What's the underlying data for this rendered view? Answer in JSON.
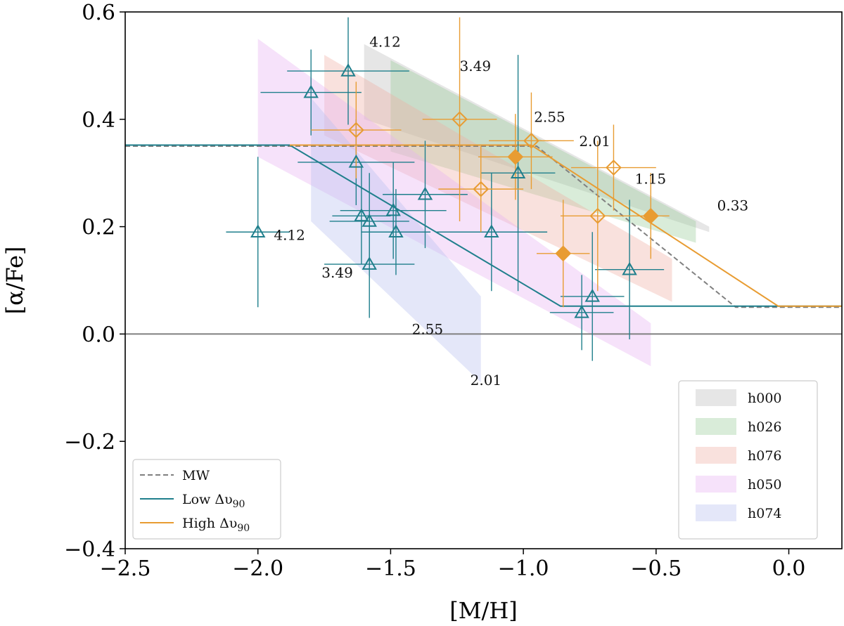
{
  "chart_data": {
    "type": "scatter",
    "xlabel": "[M/H]",
    "ylabel": "[α/Fe]",
    "xlim": [
      -2.5,
      0.2
    ],
    "ylim": [
      -0.4,
      0.6
    ],
    "xticks": [
      -2.5,
      -2.0,
      -1.5,
      -1.0,
      -0.5,
      0.0
    ],
    "xtick_labels": [
      "−2.5",
      "−2.0",
      "−1.5",
      "−1.0",
      "−0.5",
      "0.0"
    ],
    "yticks": [
      -0.4,
      -0.2,
      0.0,
      0.2,
      0.4,
      0.6
    ],
    "ytick_labels": [
      "−0.4",
      "−0.2",
      "0.0",
      "0.2",
      "0.4",
      "0.6"
    ],
    "reference_line": {
      "y": 0.0,
      "color": "#808080"
    },
    "colors": {
      "low": "#1f7f8c",
      "high": "#e89c32",
      "mw": "#808080"
    },
    "bands": [
      {
        "name": "h000",
        "color": "#bdbdbd",
        "upper": [
          [
            -1.6,
            0.54
          ],
          [
            -0.3,
            0.2
          ]
        ],
        "lower": [
          [
            -1.6,
            0.4
          ],
          [
            -0.3,
            0.19
          ]
        ]
      },
      {
        "name": "h026",
        "color": "#9ccc9c",
        "upper": [
          [
            -1.5,
            0.51
          ],
          [
            -0.35,
            0.21
          ]
        ],
        "lower": [
          [
            -1.5,
            0.34
          ],
          [
            -0.35,
            0.17
          ]
        ]
      },
      {
        "name": "h076",
        "color": "#f0b0a6",
        "upper": [
          [
            -1.75,
            0.52
          ],
          [
            -0.44,
            0.14
          ]
        ],
        "lower": [
          [
            -1.75,
            0.37
          ],
          [
            -0.44,
            0.06
          ]
        ]
      },
      {
        "name": "h050",
        "color": "#e7b3f2",
        "upper": [
          [
            -2.0,
            0.55
          ],
          [
            -0.52,
            0.02
          ]
        ],
        "lower": [
          [
            -2.0,
            0.33
          ],
          [
            -0.52,
            -0.06
          ]
        ]
      },
      {
        "name": "h074",
        "color": "#b8bfee",
        "upper": [
          [
            -1.8,
            0.44
          ],
          [
            -1.16,
            0.07
          ]
        ],
        "lower": [
          [
            -1.8,
            0.21
          ],
          [
            -1.16,
            -0.09
          ]
        ]
      }
    ],
    "band_labels": [
      {
        "text": "4.12",
        "x": -1.58,
        "y": 0.535
      },
      {
        "text": "3.49",
        "x": -1.24,
        "y": 0.49
      },
      {
        "text": "2.55",
        "x": -0.96,
        "y": 0.395
      },
      {
        "text": "2.01",
        "x": -0.79,
        "y": 0.35
      },
      {
        "text": "1.15",
        "x": -0.58,
        "y": 0.28
      },
      {
        "text": "0.33",
        "x": -0.27,
        "y": 0.23
      },
      {
        "text": "4.12",
        "x": -1.94,
        "y": 0.175
      },
      {
        "text": "3.49",
        "x": -1.76,
        "y": 0.105
      },
      {
        "text": "2.55",
        "x": -1.42,
        "y": 0.0
      },
      {
        "text": "2.01",
        "x": -1.2,
        "y": -0.095
      }
    ],
    "series": [
      {
        "name": "MW",
        "style": "dashed",
        "color": "#808080",
        "points": [
          [
            -2.5,
            0.35
          ],
          [
            -0.95,
            0.35
          ],
          [
            -0.2,
            0.05
          ],
          [
            0.2,
            0.05
          ]
        ]
      },
      {
        "name": "Low Δυ90",
        "style": "solid",
        "color": "#1f7f8c",
        "points": [
          [
            -2.5,
            0.352
          ],
          [
            -1.88,
            0.352
          ],
          [
            -0.86,
            0.052
          ],
          [
            0.2,
            0.052
          ]
        ]
      },
      {
        "name": "High Δυ90",
        "style": "solid",
        "color": "#e89c32",
        "points": [
          [
            -1.88,
            0.352
          ],
          [
            -0.97,
            0.352
          ],
          [
            -0.04,
            0.052
          ],
          [
            0.2,
            0.052
          ]
        ]
      }
    ],
    "low_points": [
      {
        "x": -2.0,
        "y": 0.19,
        "xerr": 0.12,
        "yerr": 0.14
      },
      {
        "x": -1.8,
        "y": 0.45,
        "xerr": 0.19,
        "yerr": 0.08
      },
      {
        "x": -1.66,
        "y": 0.49,
        "xerr": 0.23,
        "yerr": 0.1
      },
      {
        "x": -1.63,
        "y": 0.32,
        "xerr": 0.22,
        "yerr": 0.08
      },
      {
        "x": -1.61,
        "y": 0.22,
        "xerr": 0.11,
        "yerr": 0.09
      },
      {
        "x": -1.58,
        "y": 0.21,
        "xerr": 0.15,
        "yerr": 0.09
      },
      {
        "x": -1.58,
        "y": 0.13,
        "xerr": 0.17,
        "yerr": 0.1
      },
      {
        "x": -1.49,
        "y": 0.23,
        "xerr": 0.2,
        "yerr": 0.09
      },
      {
        "x": -1.48,
        "y": 0.19,
        "xerr": 0.13,
        "yerr": 0.08
      },
      {
        "x": -1.37,
        "y": 0.26,
        "xerr": 0.16,
        "yerr": 0.1
      },
      {
        "x": -1.12,
        "y": 0.19,
        "xerr": 0.21,
        "yerr": 0.11
      },
      {
        "x": -1.02,
        "y": 0.3,
        "xerr": 0.14,
        "yerr": 0.22
      },
      {
        "x": -0.78,
        "y": 0.04,
        "xerr": 0.12,
        "yerr": 0.07
      },
      {
        "x": -0.74,
        "y": 0.07,
        "xerr": 0.12,
        "yerr": 0.12
      },
      {
        "x": -0.6,
        "y": 0.12,
        "xerr": 0.13,
        "yerr": 0.13
      }
    ],
    "high_open_points": [
      {
        "x": -1.63,
        "y": 0.38,
        "xerr": 0.17,
        "yerr": 0.09
      },
      {
        "x": -1.24,
        "y": 0.4,
        "xerr": 0.14,
        "yerr": 0.19
      },
      {
        "x": -1.16,
        "y": 0.27,
        "xerr": 0.16,
        "yerr": 0.08
      },
      {
        "x": -0.97,
        "y": 0.36,
        "xerr": 0.16,
        "yerr": 0.09
      },
      {
        "x": -0.72,
        "y": 0.22,
        "xerr": 0.14,
        "yerr": 0.14
      },
      {
        "x": -0.66,
        "y": 0.31,
        "xerr": 0.16,
        "yerr": 0.08
      }
    ],
    "high_filled_points": [
      {
        "x": -1.03,
        "y": 0.33,
        "xerr": 0.14,
        "yerr": 0.08
      },
      {
        "x": -0.85,
        "y": 0.15,
        "xerr": 0.1,
        "yerr": 0.1
      },
      {
        "x": -0.52,
        "y": 0.22,
        "xerr": 0.07,
        "yerr": 0.08
      }
    ],
    "legend_lines": {
      "placement": "lower-left",
      "entries": [
        {
          "label": "MW",
          "sub": "",
          "style": "dashed",
          "color": "#808080"
        },
        {
          "label": "Low Δυ",
          "sub": "90",
          "style": "solid",
          "color": "#1f7f8c"
        },
        {
          "label": "High Δυ",
          "sub": "90",
          "style": "solid",
          "color": "#e89c32"
        }
      ]
    },
    "legend_bands": {
      "placement": "lower-right",
      "entries": [
        "h000",
        "h026",
        "h076",
        "h050",
        "h074"
      ]
    }
  }
}
